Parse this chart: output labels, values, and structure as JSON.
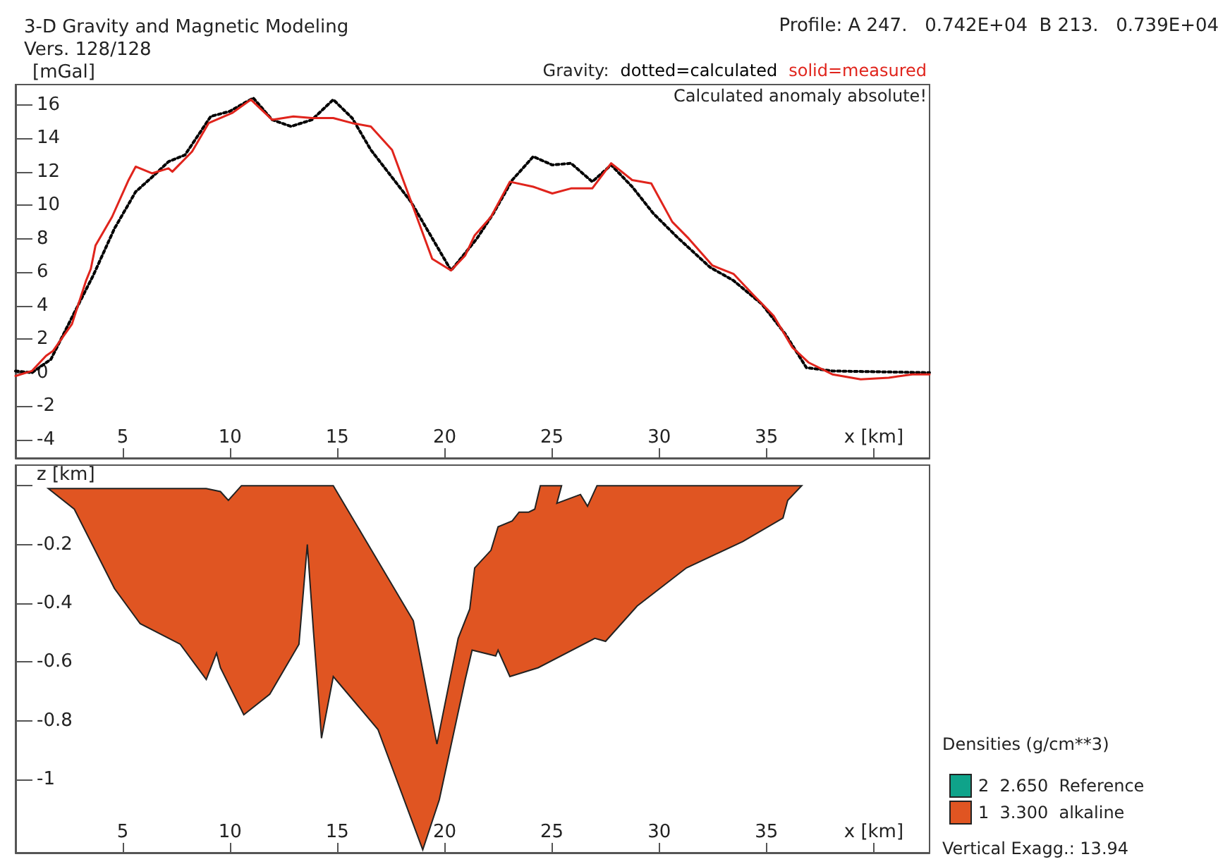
{
  "chart_data": [
    {
      "type": "line",
      "title": "3-D Gravity and Magnetic Modeling",
      "subtitle": "Vers. 128/128",
      "ylabel": "[mGal]",
      "legend_title": "Gravity:",
      "legend": "top right",
      "annotations": [
        "Profile: A 247.   0.742E+04  B 213.   0.739E+04",
        "Calculated anomaly absolute!"
      ],
      "xlim": [
        0,
        42.6
      ],
      "xticks": [
        5,
        10,
        15,
        20,
        25,
        30,
        35,
        {
          "value": 40,
          "label": "x [km]"
        }
      ],
      "ylim": [
        -5.1,
        17.2
      ],
      "yticks": [
        -4,
        -2,
        0,
        2,
        4,
        6,
        8,
        10,
        12,
        14,
        16
      ],
      "series": [
        {
          "name": "dotted=calculated",
          "color": "#000000",
          "line_style": "dotted",
          "x": [
            0,
            0.77,
            1.65,
            2.63,
            3.62,
            4.61,
            5.6,
            6.47,
            7.13,
            7.9,
            9.1,
            9.98,
            11.08,
            11.96,
            12.84,
            13.82,
            14.81,
            15.69,
            16.56,
            18.43,
            20.3,
            21.5,
            22.27,
            23.15,
            24.13,
            25.02,
            25.89,
            26.88,
            27.76,
            28.74,
            29.73,
            30.83,
            32.36,
            33.46,
            34.78,
            35.88,
            36.86,
            38.07,
            42.6
          ],
          "values": [
            0.1,
            0,
            0.8,
            3.3,
            5.8,
            8.6,
            10.8,
            11.8,
            12.6,
            13,
            15.3,
            15.6,
            16.4,
            15.1,
            14.7,
            15.1,
            16.3,
            15.2,
            13.3,
            10.2,
            6.1,
            8,
            9.5,
            11.5,
            12.9,
            12.4,
            12.5,
            11.4,
            12.4,
            11.1,
            9.5,
            8.1,
            6.3,
            5.5,
            4.1,
            2.3,
            0.3,
            0.1,
            0
          ]
        },
        {
          "name": "solid=measured",
          "color": "#e0241c",
          "line_style": "solid",
          "x": [
            0,
            0.76,
            1.42,
            1.75,
            2.63,
            3.29,
            3.51,
            3.73,
            4.5,
            5.27,
            5.6,
            6.36,
            7.13,
            7.31,
            8.23,
            9,
            10.09,
            10.97,
            11.96,
            12.95,
            13.82,
            14.81,
            15.69,
            16.56,
            17.55,
            19.42,
            20.3,
            20.96,
            21.4,
            22.16,
            23.04,
            24.13,
            25.02,
            25.89,
            26.88,
            27.76,
            28.74,
            29.63,
            30.61,
            31.38,
            32.48,
            33.46,
            34.34,
            35.33,
            36.21,
            36.97,
            38.07,
            39.39,
            40.7,
            41.8,
            42.6
          ],
          "values": [
            -0.2,
            0.1,
            1,
            1.3,
            2.9,
            5.5,
            6.2,
            7.6,
            9.3,
            11.5,
            12.3,
            11.9,
            12.2,
            12,
            13.2,
            14.9,
            15.5,
            16.3,
            15.1,
            15.3,
            15.2,
            15.2,
            14.9,
            14.7,
            13.3,
            6.8,
            6.1,
            7,
            8.2,
            9.3,
            11.4,
            11.1,
            10.7,
            11,
            11,
            12.5,
            11.5,
            11.3,
            9,
            8,
            6.4,
            5.9,
            4.7,
            3.4,
            1.5,
            0.6,
            -0.1,
            -0.4,
            -0.3,
            -0.1,
            -0.1
          ]
        }
      ]
    },
    {
      "type": "area",
      "legend_title": "Densities (g/cm**3)",
      "legend": "bottom right",
      "annotations": [
        "Vertical Exagg.: 13.94"
      ],
      "xlim": [
        0,
        42.6
      ],
      "xticks": [
        5,
        10,
        15,
        20,
        25,
        30,
        35,
        {
          "value": 40,
          "label": "x [km]"
        }
      ],
      "ylim": [
        -1.25,
        0.07
      ],
      "yticks": [
        {
          "value": 0,
          "label": "z [km]"
        },
        -0.2,
        -0.4,
        -0.6,
        -0.8,
        -1
      ],
      "series": [
        {
          "name": "2  2.650  Reference",
          "color": "#0fa38a"
        },
        {
          "name": "1  3.300  alkaline",
          "color": "#e05522",
          "x": [
            1.53,
            8.89,
            9.55,
            9.92,
            10.53,
            14.81,
            18.54,
            19.64,
            20.63,
            21.17,
            21.4,
            22.16,
            22.49,
            23.15,
            23.47,
            23.92,
            24.2,
            24.46,
            25.45,
            25.23,
            26.33,
            26.66,
            27.1,
            35.66,
            36.64,
            35.99,
            35.77,
            33.9,
            31.27,
            28.97,
            27.5,
            27,
            24.36,
            23.04,
            22.49,
            22.38,
            21.28,
            20.96,
            19.75,
            18.98,
            16.89,
            14.81,
            14.26,
            14.15,
            13.89,
            13.6,
            13.21,
            11.85,
            10.64,
            9.55,
            9.37,
            8.89,
            7.68,
            5.81,
            4.61,
            2.74
          ],
          "values": [
            -0.01,
            -0.01,
            -0.02,
            -0.05,
            0,
            0,
            -0.46,
            -0.88,
            -0.52,
            -0.42,
            -0.28,
            -0.22,
            -0.14,
            -0.12,
            -0.09,
            -0.09,
            -0.08,
            0,
            0,
            -0.06,
            -0.03,
            -0.07,
            0,
            0,
            0,
            -0.05,
            -0.11,
            -0.19,
            -0.28,
            -0.41,
            -0.53,
            -0.52,
            -0.62,
            -0.65,
            -0.56,
            -0.58,
            -0.56,
            -0.66,
            -1.07,
            -1.24,
            -0.83,
            -0.65,
            -0.86,
            -0.75,
            -0.5,
            -0.2,
            -0.54,
            -0.71,
            -0.78,
            -0.62,
            -0.57,
            -0.66,
            -0.54,
            -0.47,
            -0.35,
            -0.08
          ]
        }
      ]
    }
  ]
}
